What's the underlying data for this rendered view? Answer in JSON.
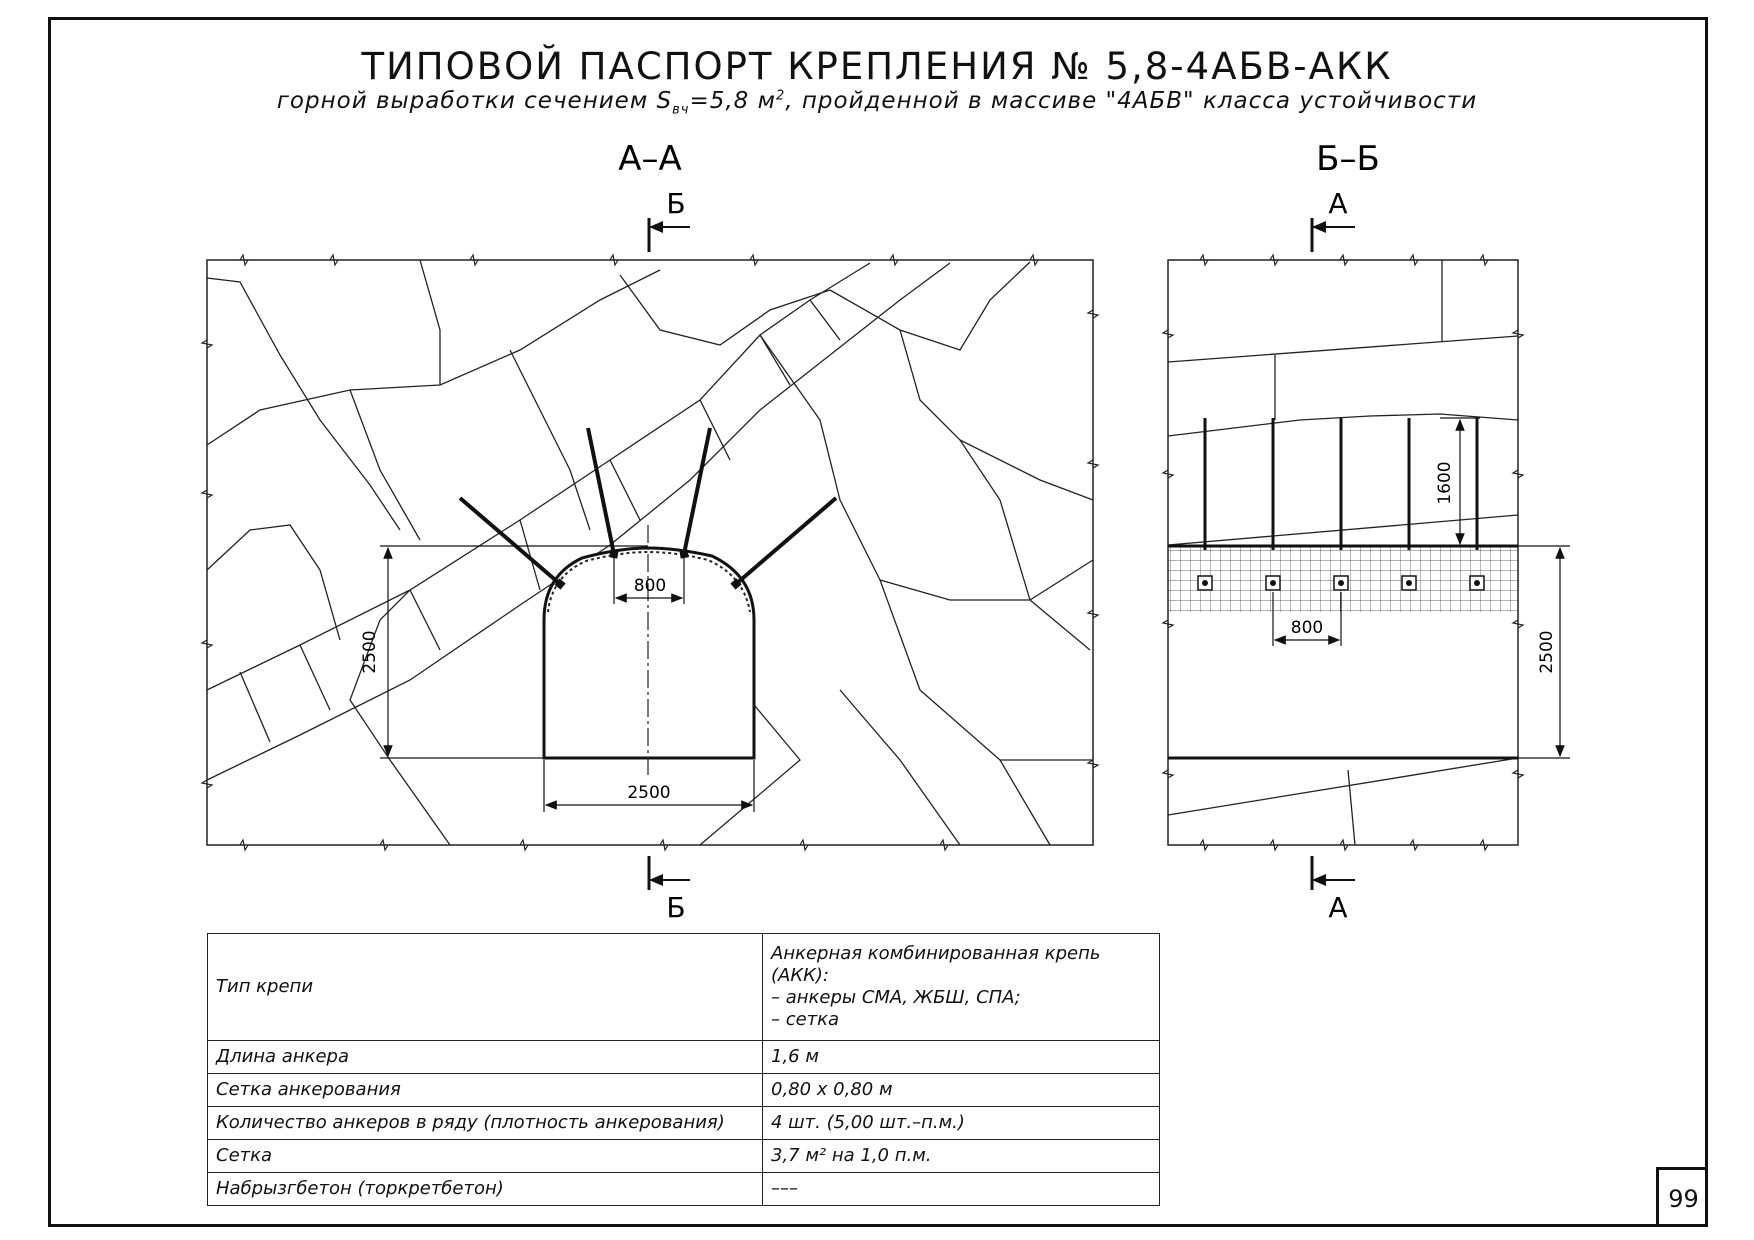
{
  "title": "ТИПОВОЙ ПАСПОРТ КРЕПЛЕНИЯ № 5,8-4АБВ-АКК",
  "subtitle": {
    "before": "горной выработки сечением S",
    "sub": "вч",
    "middle": "=5,8 м",
    "sup": "2",
    "after": ", пройденной в массиве \"4АБВ\" класса устойчивости"
  },
  "sections": {
    "aa": {
      "label": "А–А",
      "cut_mark_top": "Б",
      "cut_mark_bottom": "Б"
    },
    "bb": {
      "label": "Б–Б",
      "cut_mark_top": "А",
      "cut_mark_bottom": "А"
    }
  },
  "dimensions": {
    "aa_height": "2500",
    "aa_width": "2500",
    "aa_anchor_spacing": "800",
    "bb_height": "2500",
    "bb_anchor_spacing": "800",
    "bb_anchor_length": "1600"
  },
  "spec_table": [
    {
      "key": "Тип крепи",
      "value": "Анкерная комбинированная крепь (АКК):\n– анкеры СМА, ЖБШ, СПА;\n– сетка"
    },
    {
      "key": "Длина анкера",
      "value": "1,6 м"
    },
    {
      "key": "Сетка анкерования",
      "value": "0,80 х 0,80 м"
    },
    {
      "key": "Количество анкеров в ряду (плотность анкерования)",
      "value": "4 шт. (5,00 шт.–п.м.)"
    },
    {
      "key": "Сетка",
      "value": "3,7 м² на 1,0 п.м."
    },
    {
      "key": "Набрызгбетон (торкретбетон)",
      "value": "–––"
    }
  ],
  "page_number": "99"
}
